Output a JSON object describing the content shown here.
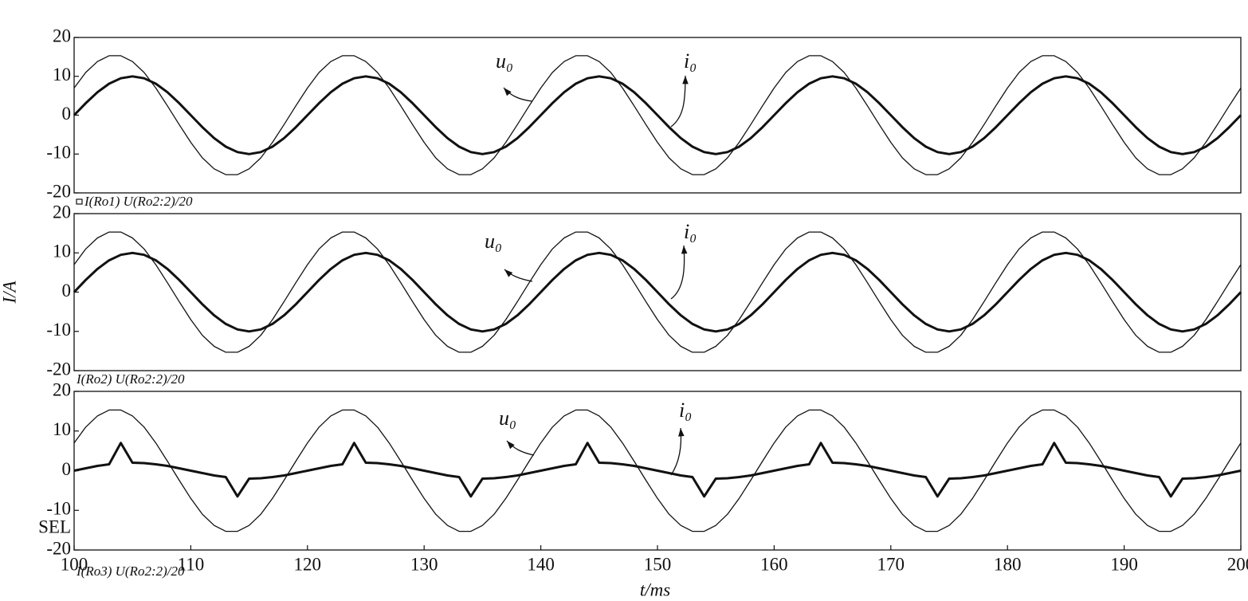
{
  "chart_data": [
    {
      "type": "line",
      "label": "I(Ro1)  U(Ro2:2)/20",
      "annotations": [
        "u₀",
        "i₀"
      ],
      "xlim": [
        100,
        200
      ],
      "ylim": [
        -20,
        20
      ],
      "yticks": [
        -20,
        -10,
        0,
        10,
        20
      ],
      "x": [
        100,
        101,
        102,
        103,
        104,
        105,
        106,
        107,
        108,
        109,
        110,
        111,
        112,
        113,
        114,
        115,
        116,
        117,
        118,
        119,
        120,
        121,
        122,
        123,
        124,
        125,
        126,
        127,
        128,
        129,
        130,
        131,
        132,
        133,
        134,
        135,
        136,
        137,
        138,
        139,
        140,
        141,
        142,
        143,
        144,
        145,
        146,
        147,
        148,
        149,
        150,
        151,
        152,
        153,
        154,
        155,
        156,
        157,
        158,
        159,
        160,
        161,
        162,
        163,
        164,
        165,
        166,
        167,
        168,
        169,
        170,
        171,
        172,
        173,
        174,
        175,
        176,
        177,
        178,
        179,
        180,
        181,
        182,
        183,
        184,
        185,
        186,
        187,
        188,
        189,
        190,
        191,
        192,
        193,
        194,
        195,
        196,
        197,
        198,
        199,
        200
      ],
      "series": [
        {
          "color": "#111111",
          "linewidth": 1.3,
          "values": [
            7.0,
            11.0,
            13.8,
            15.3,
            15.3,
            13.8,
            11.0,
            7.0,
            2.4,
            -2.4,
            -7.0,
            -11.0,
            -13.8,
            -15.3,
            -15.3,
            -13.8,
            -11.0,
            -7.0,
            -2.4,
            2.4,
            7.0,
            11.0,
            13.8,
            15.3,
            15.3,
            13.8,
            11.0,
            7.0,
            2.4,
            -2.4,
            -7.0,
            -11.0,
            -13.8,
            -15.3,
            -15.3,
            -13.8,
            -11.0,
            -7.0,
            -2.4,
            2.4,
            7.0,
            11.0,
            13.8,
            15.3,
            15.3,
            13.8,
            11.0,
            7.0,
            2.4,
            -2.4,
            -7.0,
            -11.0,
            -13.8,
            -15.3,
            -15.3,
            -13.8,
            -11.0,
            -7.0,
            -2.4,
            2.4,
            7.0,
            11.0,
            13.8,
            15.3,
            15.3,
            13.8,
            11.0,
            7.0,
            2.4,
            -2.4,
            -7.0,
            -11.0,
            -13.8,
            -15.3,
            -15.3,
            -13.8,
            -11.0,
            -7.0,
            -2.4,
            2.4,
            7.0,
            11.0,
            13.8,
            15.3,
            15.3,
            13.8,
            11.0,
            7.0,
            2.4,
            -2.4,
            -7.0,
            -11.0,
            -13.8,
            -15.3,
            -15.3,
            -13.8,
            -11.0,
            -7.0,
            -2.4,
            2.4,
            7.0
          ]
        },
        {
          "color": "#111111",
          "linewidth": 3,
          "values": [
            0,
            3.1,
            5.9,
            8.1,
            9.5,
            10,
            9.5,
            8.1,
            5.9,
            3.1,
            0,
            -3.1,
            -5.9,
            -8.1,
            -9.5,
            -10,
            -9.5,
            -8.1,
            -5.9,
            -3.1,
            0,
            3.1,
            5.9,
            8.1,
            9.5,
            10,
            9.5,
            8.1,
            5.9,
            3.1,
            0,
            -3.1,
            -5.9,
            -8.1,
            -9.5,
            -10,
            -9.5,
            -8.1,
            -5.9,
            -3.1,
            0,
            3.1,
            5.9,
            8.1,
            9.5,
            10,
            9.5,
            8.1,
            5.9,
            3.1,
            0,
            -3.1,
            -5.9,
            -8.1,
            -9.5,
            -10,
            -9.5,
            -8.1,
            -5.9,
            -3.1,
            0,
            3.1,
            5.9,
            8.1,
            9.5,
            10,
            9.5,
            8.1,
            5.9,
            3.1,
            0,
            -3.1,
            -5.9,
            -8.1,
            -9.5,
            -10,
            -9.5,
            -8.1,
            -5.9,
            -3.1,
            0,
            3.1,
            5.9,
            8.1,
            9.5,
            10,
            9.5,
            8.1,
            5.9,
            3.1,
            0,
            -3.1,
            -5.9,
            -8.1,
            -9.5,
            -10,
            -9.5,
            -8.1,
            -5.9,
            -3.1,
            0
          ]
        }
      ]
    },
    {
      "type": "line",
      "label": "I(Ro2)  U(Ro2:2)/20",
      "annotations": [
        "u₀",
        "i₀"
      ],
      "ylabel": "I/A",
      "xlim": [
        100,
        200
      ],
      "ylim": [
        -20,
        20
      ],
      "yticks": [
        -20,
        -10,
        0,
        10,
        20
      ],
      "x": [
        100,
        101,
        102,
        103,
        104,
        105,
        106,
        107,
        108,
        109,
        110,
        111,
        112,
        113,
        114,
        115,
        116,
        117,
        118,
        119,
        120,
        121,
        122,
        123,
        124,
        125,
        126,
        127,
        128,
        129,
        130,
        131,
        132,
        133,
        134,
        135,
        136,
        137,
        138,
        139,
        140,
        141,
        142,
        143,
        144,
        145,
        146,
        147,
        148,
        149,
        150,
        151,
        152,
        153,
        154,
        155,
        156,
        157,
        158,
        159,
        160,
        161,
        162,
        163,
        164,
        165,
        166,
        167,
        168,
        169,
        170,
        171,
        172,
        173,
        174,
        175,
        176,
        177,
        178,
        179,
        180,
        181,
        182,
        183,
        184,
        185,
        186,
        187,
        188,
        189,
        190,
        191,
        192,
        193,
        194,
        195,
        196,
        197,
        198,
        199,
        200
      ],
      "series": [
        {
          "color": "#111111",
          "linewidth": 1.3,
          "values": [
            7.0,
            11.0,
            13.8,
            15.3,
            15.3,
            13.8,
            11.0,
            7.0,
            2.4,
            -2.4,
            -7.0,
            -11.0,
            -13.8,
            -15.3,
            -15.3,
            -13.8,
            -11.0,
            -7.0,
            -2.4,
            2.4,
            7.0,
            11.0,
            13.8,
            15.3,
            15.3,
            13.8,
            11.0,
            7.0,
            2.4,
            -2.4,
            -7.0,
            -11.0,
            -13.8,
            -15.3,
            -15.3,
            -13.8,
            -11.0,
            -7.0,
            -2.4,
            2.4,
            7.0,
            11.0,
            13.8,
            15.3,
            15.3,
            13.8,
            11.0,
            7.0,
            2.4,
            -2.4,
            -7.0,
            -11.0,
            -13.8,
            -15.3,
            -15.3,
            -13.8,
            -11.0,
            -7.0,
            -2.4,
            2.4,
            7.0,
            11.0,
            13.8,
            15.3,
            15.3,
            13.8,
            11.0,
            7.0,
            2.4,
            -2.4,
            -7.0,
            -11.0,
            -13.8,
            -15.3,
            -15.3,
            -13.8,
            -11.0,
            -7.0,
            -2.4,
            2.4,
            7.0,
            11.0,
            13.8,
            15.3,
            15.3,
            13.8,
            11.0,
            7.0,
            2.4,
            -2.4,
            -7.0,
            -11.0,
            -13.8,
            -15.3,
            -15.3,
            -13.8,
            -11.0,
            -7.0,
            -2.4,
            2.4,
            7.0
          ]
        },
        {
          "color": "#111111",
          "linewidth": 3,
          "values": [
            0,
            3.1,
            5.9,
            8.1,
            9.5,
            10,
            9.5,
            8.1,
            5.9,
            3.1,
            0,
            -3.1,
            -5.9,
            -8.1,
            -9.5,
            -10,
            -9.5,
            -8.1,
            -5.9,
            -3.1,
            0,
            3.1,
            5.9,
            8.1,
            9.5,
            10,
            9.5,
            8.1,
            5.9,
            3.1,
            0,
            -3.1,
            -5.9,
            -8.1,
            -9.5,
            -10,
            -9.5,
            -8.1,
            -5.9,
            -3.1,
            0,
            3.1,
            5.9,
            8.1,
            9.5,
            10,
            9.5,
            8.1,
            5.9,
            3.1,
            0,
            -3.1,
            -5.9,
            -8.1,
            -9.5,
            -10,
            -9.5,
            -8.1,
            -5.9,
            -3.1,
            0,
            3.1,
            5.9,
            8.1,
            9.5,
            10,
            9.5,
            8.1,
            5.9,
            3.1,
            0,
            -3.1,
            -5.9,
            -8.1,
            -9.5,
            -10,
            -9.5,
            -8.1,
            -5.9,
            -3.1,
            0,
            3.1,
            5.9,
            8.1,
            9.5,
            10,
            9.5,
            8.1,
            5.9,
            3.1,
            0,
            -3.1,
            -5.9,
            -8.1,
            -9.5,
            -10,
            -9.5,
            -8.1,
            -5.9,
            -3.1,
            0
          ]
        }
      ]
    },
    {
      "type": "line",
      "label": "I(Ro3)  U(Ro2:2)/20",
      "annotations": [
        "u₀",
        "i₀"
      ],
      "note": "SEL",
      "xlabel": "t/ms",
      "xlim": [
        100,
        200
      ],
      "ylim": [
        -20,
        20
      ],
      "yticks": [
        -20,
        -10,
        0,
        10,
        20
      ],
      "xticks": [
        100,
        110,
        120,
        130,
        140,
        150,
        160,
        170,
        180,
        190,
        200
      ],
      "x": [
        100,
        101,
        102,
        103,
        104,
        105,
        106,
        107,
        108,
        109,
        110,
        111,
        112,
        113,
        114,
        115,
        116,
        117,
        118,
        119,
        120,
        121,
        122,
        123,
        124,
        125,
        126,
        127,
        128,
        129,
        130,
        131,
        132,
        133,
        134,
        135,
        136,
        137,
        138,
        139,
        140,
        141,
        142,
        143,
        144,
        145,
        146,
        147,
        148,
        149,
        150,
        151,
        152,
        153,
        154,
        155,
        156,
        157,
        158,
        159,
        160,
        161,
        162,
        163,
        164,
        165,
        166,
        167,
        168,
        169,
        170,
        171,
        172,
        173,
        174,
        175,
        176,
        177,
        178,
        179,
        180,
        181,
        182,
        183,
        184,
        185,
        186,
        187,
        188,
        189,
        190,
        191,
        192,
        193,
        194,
        195,
        196,
        197,
        198,
        199,
        200
      ],
      "series": [
        {
          "color": "#111111",
          "linewidth": 1.3,
          "values": [
            7.0,
            11.0,
            13.8,
            15.3,
            15.3,
            13.8,
            11.0,
            7.0,
            2.4,
            -2.4,
            -7.0,
            -11.0,
            -13.8,
            -15.3,
            -15.3,
            -13.8,
            -11.0,
            -7.0,
            -2.4,
            2.4,
            7.0,
            11.0,
            13.8,
            15.3,
            15.3,
            13.8,
            11.0,
            7.0,
            2.4,
            -2.4,
            -7.0,
            -11.0,
            -13.8,
            -15.3,
            -15.3,
            -13.8,
            -11.0,
            -7.0,
            -2.4,
            2.4,
            7.0,
            11.0,
            13.8,
            15.3,
            15.3,
            13.8,
            11.0,
            7.0,
            2.4,
            -2.4,
            -7.0,
            -11.0,
            -13.8,
            -15.3,
            -15.3,
            -13.8,
            -11.0,
            -7.0,
            -2.4,
            2.4,
            7.0,
            11.0,
            13.8,
            15.3,
            15.3,
            13.8,
            11.0,
            7.0,
            2.4,
            -2.4,
            -7.0,
            -11.0,
            -13.8,
            -15.3,
            -15.3,
            -13.8,
            -11.0,
            -7.0,
            -2.4,
            2.4,
            7.0,
            11.0,
            13.8,
            15.3,
            15.3,
            13.8,
            11.0,
            7.0,
            2.4,
            -2.4,
            -7.0,
            -11.0,
            -13.8,
            -15.3,
            -15.3,
            -13.8,
            -11.0,
            -7.0,
            -2.4,
            2.4,
            7.0
          ]
        },
        {
          "color": "#111111",
          "linewidth": 3,
          "values": [
            0,
            0.6,
            1.2,
            1.6,
            7.0,
            2.0,
            1.9,
            1.6,
            1.2,
            0.6,
            0,
            -0.6,
            -1.2,
            -1.6,
            -6.5,
            -2.0,
            -1.9,
            -1.6,
            -1.2,
            -0.6,
            0,
            0.6,
            1.2,
            1.6,
            7.0,
            2.0,
            1.9,
            1.6,
            1.2,
            0.6,
            0,
            -0.6,
            -1.2,
            -1.6,
            -6.5,
            -2.0,
            -1.9,
            -1.6,
            -1.2,
            -0.6,
            0,
            0.6,
            1.2,
            1.6,
            7.0,
            2.0,
            1.9,
            1.6,
            1.2,
            0.6,
            0,
            -0.6,
            -1.2,
            -1.6,
            -6.5,
            -2.0,
            -1.9,
            -1.6,
            -1.2,
            -0.6,
            0,
            0.6,
            1.2,
            1.6,
            7.0,
            2.0,
            1.9,
            1.6,
            1.2,
            0.6,
            0,
            -0.6,
            -1.2,
            -1.6,
            -6.5,
            -2.0,
            -1.9,
            -1.6,
            -1.2,
            -0.6,
            0,
            0.6,
            1.2,
            1.6,
            7.0,
            2.0,
            1.9,
            1.6,
            1.2,
            0.6,
            0,
            -0.6,
            -1.2,
            -1.6,
            -6.5,
            -2.0,
            -1.9,
            -1.6,
            -1.2,
            -0.6,
            0
          ]
        }
      ]
    }
  ]
}
